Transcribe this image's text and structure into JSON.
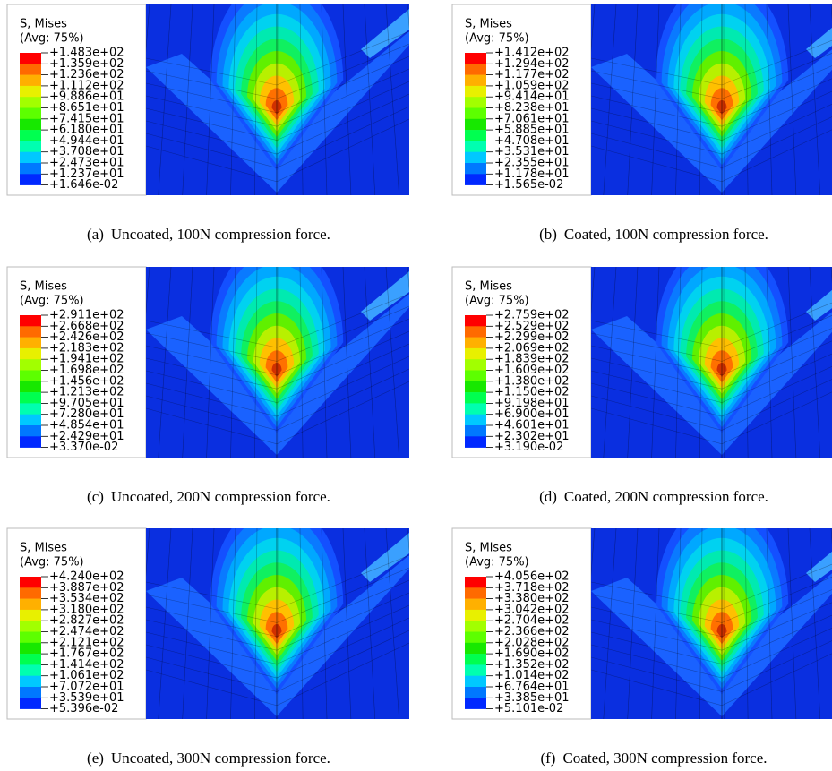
{
  "panels": [
    {
      "legend": {
        "title": "S, Mises",
        "avg": "(Avg: 75%)",
        "values": [
          "+1.483e+02",
          "+1.359e+02",
          "+1.236e+02",
          "+1.112e+02",
          "+9.886e+01",
          "+8.651e+01",
          "+7.415e+01",
          "+6.180e+01",
          "+4.944e+01",
          "+3.708e+01",
          "+2.473e+01",
          "+1.237e+01",
          "+1.646e-02"
        ]
      },
      "label": "(a)",
      "caption": "Uncoated, 100N compression force."
    },
    {
      "legend": {
        "title": "S, Mises",
        "avg": "(Avg: 75%)",
        "values": [
          "+1.412e+02",
          "+1.294e+02",
          "+1.177e+02",
          "+1.059e+02",
          "+9.414e+01",
          "+8.238e+01",
          "+7.061e+01",
          "+5.885e+01",
          "+4.708e+01",
          "+3.531e+01",
          "+2.355e+01",
          "+1.178e+01",
          "+1.565e-02"
        ]
      },
      "label": "(b)",
      "caption": "Coated, 100N compression force."
    },
    {
      "legend": {
        "title": "S, Mises",
        "avg": "(Avg: 75%)",
        "values": [
          "+2.911e+02",
          "+2.668e+02",
          "+2.426e+02",
          "+2.183e+02",
          "+1.941e+02",
          "+1.698e+02",
          "+1.456e+02",
          "+1.213e+02",
          "+9.705e+01",
          "+7.280e+01",
          "+4.854e+01",
          "+2.429e+01",
          "+3.370e-02"
        ]
      },
      "label": "(c)",
      "caption": "Uncoated, 200N compression force."
    },
    {
      "legend": {
        "title": "S, Mises",
        "avg": "(Avg: 75%)",
        "values": [
          "+2.759e+02",
          "+2.529e+02",
          "+2.299e+02",
          "+2.069e+02",
          "+1.839e+02",
          "+1.609e+02",
          "+1.380e+02",
          "+1.150e+02",
          "+9.198e+01",
          "+6.900e+01",
          "+4.601e+01",
          "+2.302e+01",
          "+3.190e-02"
        ]
      },
      "label": "(d)",
      "caption": "Coated, 200N compression force."
    },
    {
      "legend": {
        "title": "S, Mises",
        "avg": "(Avg: 75%)",
        "values": [
          "+4.240e+02",
          "+3.887e+02",
          "+3.534e+02",
          "+3.180e+02",
          "+2.827e+02",
          "+2.474e+02",
          "+2.121e+02",
          "+1.767e+02",
          "+1.414e+02",
          "+1.061e+02",
          "+7.072e+01",
          "+3.539e+01",
          "+5.396e-02"
        ]
      },
      "label": "(e)",
      "caption": "Uncoated, 300N compression force."
    },
    {
      "legend": {
        "title": "S, Mises",
        "avg": "(Avg: 75%)",
        "values": [
          "+4.056e+02",
          "+3.718e+02",
          "+3.380e+02",
          "+3.042e+02",
          "+2.704e+02",
          "+2.366e+02",
          "+2.028e+02",
          "+1.690e+02",
          "+1.352e+02",
          "+1.014e+02",
          "+6.764e+01",
          "+3.385e+01",
          "+5.101e-02"
        ]
      },
      "label": "(f)",
      "caption": "Coated, 300N compression force."
    }
  ]
}
